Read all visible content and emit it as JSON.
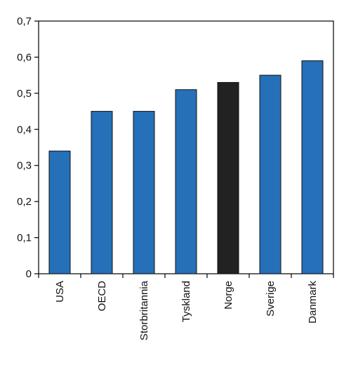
{
  "chart_data": {
    "type": "bar",
    "categories": [
      "USA",
      "OECD",
      "Storbritannia",
      "Tyskland",
      "Norge",
      "Sverige",
      "Danmark"
    ],
    "values": [
      0.34,
      0.45,
      0.45,
      0.51,
      0.53,
      0.55,
      0.59
    ],
    "ylim": [
      0,
      0.7
    ],
    "yticks": [
      0,
      0.1,
      0.2,
      0.3,
      0.4,
      0.5,
      0.6,
      0.7
    ],
    "ytick_labels": [
      "0",
      "0,1",
      "0,2",
      "0,3",
      "0,4",
      "0,5",
      "0,6",
      "0,7"
    ],
    "grid": false,
    "legend": "none",
    "colors": {
      "default_bar": "#2570b8",
      "highlight_bar": "#222222",
      "highlight_category": "Norge",
      "axis": "#000000"
    }
  }
}
